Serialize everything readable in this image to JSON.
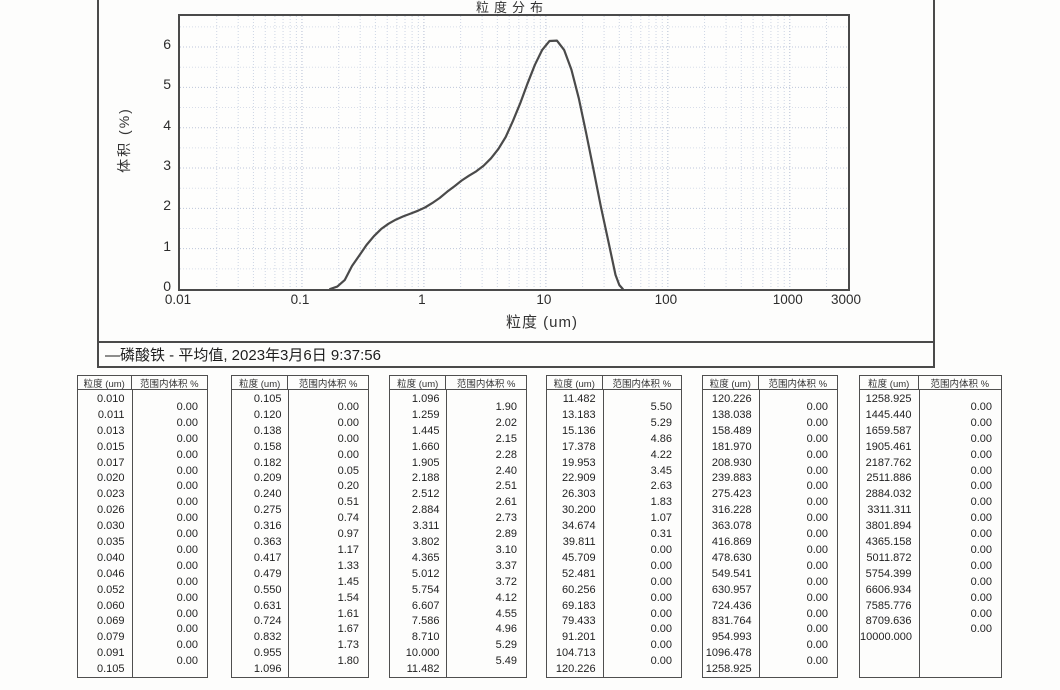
{
  "chart": {
    "title": "粒度分布",
    "ylabel": "体积 (%)",
    "xlabel": "粒度 (um)",
    "legend": "—磷酸铁 - 平均值, 2023年3月6日  9:37:56"
  },
  "chart_data": {
    "type": "line",
    "title": "粒度分布",
    "xlabel": "粒度 (um)",
    "ylabel": "体积 (%)",
    "x_scale": "log",
    "xlim": [
      0.01,
      3000
    ],
    "ylim": [
      0,
      6.77
    ],
    "x_ticks": [
      "0.01",
      "0.1",
      "1",
      "10",
      "100",
      "1000",
      "3000"
    ],
    "y_ticks": [
      "0",
      "1",
      "2",
      "3",
      "4",
      "5",
      "6"
    ],
    "grid": true,
    "legend_position": "bottom-strip",
    "line_color": "#4a4a4a",
    "grid_color": "#c3cbdd",
    "series": [
      {
        "name": "磷酸铁 - 平均值, 2023年3月6日 9:37:56",
        "x": [
          0.17,
          0.195,
          0.224,
          0.257,
          0.295,
          0.338,
          0.389,
          0.447,
          0.513,
          0.589,
          0.676,
          0.776,
          0.891,
          1.02,
          1.17,
          1.35,
          1.55,
          1.78,
          2.04,
          2.34,
          2.69,
          3.09,
          3.55,
          4.07,
          4.68,
          5.37,
          6.17,
          7.08,
          8.13,
          9.33,
          10.7,
          12.3,
          14.1,
          16.2,
          18.6,
          21.4,
          24.6,
          28.2,
          32.4,
          37.2,
          40.0,
          42.7
        ],
        "y": [
          0.0,
          0.06,
          0.22,
          0.57,
          0.83,
          1.09,
          1.31,
          1.49,
          1.62,
          1.72,
          1.8,
          1.87,
          1.94,
          2.02,
          2.13,
          2.26,
          2.41,
          2.55,
          2.69,
          2.81,
          2.92,
          3.06,
          3.24,
          3.47,
          3.77,
          4.17,
          4.61,
          5.1,
          5.56,
          5.93,
          6.15,
          6.16,
          5.93,
          5.44,
          4.73,
          3.86,
          2.95,
          2.05,
          1.2,
          0.35,
          0.1,
          0.0
        ]
      }
    ]
  },
  "tables": {
    "header": [
      "粒度 (um)",
      "范围内体积 %"
    ],
    "columns": [
      {
        "sizes": [
          "0.010",
          "0.011",
          "0.013",
          "0.015",
          "0.017",
          "0.020",
          "0.023",
          "0.026",
          "0.030",
          "0.035",
          "0.040",
          "0.046",
          "0.052",
          "0.060",
          "0.069",
          "0.079",
          "0.091",
          "0.105"
        ],
        "values": [
          "0.00",
          "0.00",
          "0.00",
          "0.00",
          "0.00",
          "0.00",
          "0.00",
          "0.00",
          "0.00",
          "0.00",
          "0.00",
          "0.00",
          "0.00",
          "0.00",
          "0.00",
          "0.00",
          "0.00"
        ]
      },
      {
        "sizes": [
          "0.105",
          "0.120",
          "0.138",
          "0.158",
          "0.182",
          "0.209",
          "0.240",
          "0.275",
          "0.316",
          "0.363",
          "0.417",
          "0.479",
          "0.550",
          "0.631",
          "0.724",
          "0.832",
          "0.955",
          "1.096"
        ],
        "values": [
          "0.00",
          "0.00",
          "0.00",
          "0.00",
          "0.05",
          "0.20",
          "0.51",
          "0.74",
          "0.97",
          "1.17",
          "1.33",
          "1.45",
          "1.54",
          "1.61",
          "1.67",
          "1.73",
          "1.80"
        ]
      },
      {
        "sizes": [
          "1.096",
          "1.259",
          "1.445",
          "1.660",
          "1.905",
          "2.188",
          "2.512",
          "2.884",
          "3.311",
          "3.802",
          "4.365",
          "5.012",
          "5.754",
          "6.607",
          "7.586",
          "8.710",
          "10.000",
          "11.482"
        ],
        "values": [
          "1.90",
          "2.02",
          "2.15",
          "2.28",
          "2.40",
          "2.51",
          "2.61",
          "2.73",
          "2.89",
          "3.10",
          "3.37",
          "3.72",
          "4.12",
          "4.55",
          "4.96",
          "5.29",
          "5.49"
        ]
      },
      {
        "sizes": [
          "11.482",
          "13.183",
          "15.136",
          "17.378",
          "19.953",
          "22.909",
          "26.303",
          "30.200",
          "34.674",
          "39.811",
          "45.709",
          "52.481",
          "60.256",
          "69.183",
          "79.433",
          "91.201",
          "104.713",
          "120.226"
        ],
        "values": [
          "5.50",
          "5.29",
          "4.86",
          "4.22",
          "3.45",
          "2.63",
          "1.83",
          "1.07",
          "0.31",
          "0.00",
          "0.00",
          "0.00",
          "0.00",
          "0.00",
          "0.00",
          "0.00",
          "0.00"
        ]
      },
      {
        "sizes": [
          "120.226",
          "138.038",
          "158.489",
          "181.970",
          "208.930",
          "239.883",
          "275.423",
          "316.228",
          "363.078",
          "416.869",
          "478.630",
          "549.541",
          "630.957",
          "724.436",
          "831.764",
          "954.993",
          "1096.478",
          "1258.925"
        ],
        "values": [
          "0.00",
          "0.00",
          "0.00",
          "0.00",
          "0.00",
          "0.00",
          "0.00",
          "0.00",
          "0.00",
          "0.00",
          "0.00",
          "0.00",
          "0.00",
          "0.00",
          "0.00",
          "0.00",
          "0.00"
        ]
      },
      {
        "sizes": [
          "1258.925",
          "1445.440",
          "1659.587",
          "1905.461",
          "2187.762",
          "2511.886",
          "2884.032",
          "3311.311",
          "3801.894",
          "4365.158",
          "5011.872",
          "5754.399",
          "6606.934",
          "7585.776",
          "8709.636",
          "10000.000"
        ],
        "values": [
          "0.00",
          "0.00",
          "0.00",
          "0.00",
          "0.00",
          "0.00",
          "0.00",
          "0.00",
          "0.00",
          "0.00",
          "0.00",
          "0.00",
          "0.00",
          "0.00",
          "0.00"
        ]
      }
    ]
  }
}
